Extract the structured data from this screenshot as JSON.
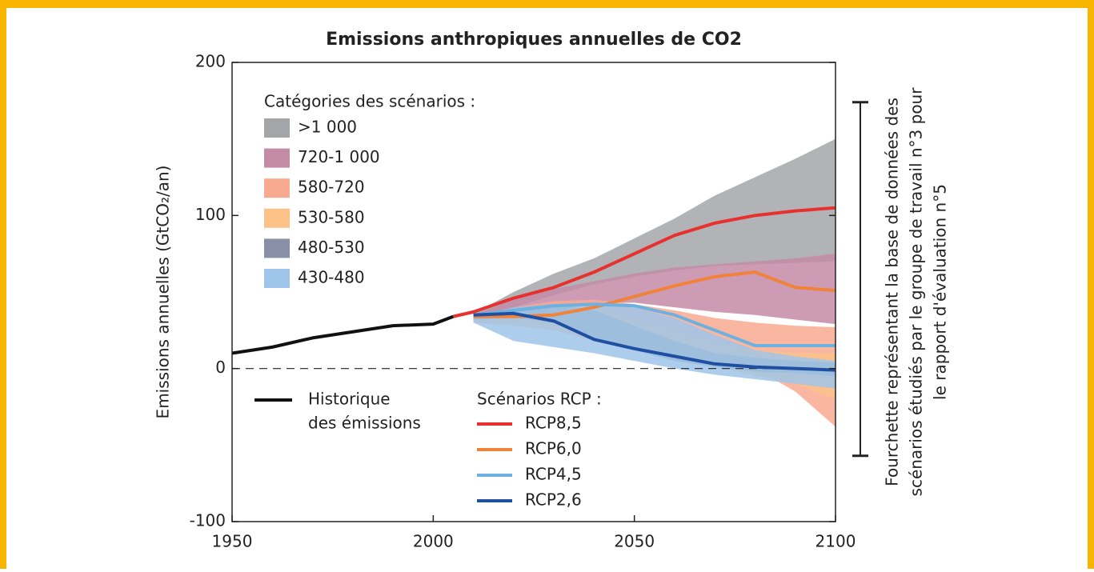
{
  "chart_data": {
    "type": "line",
    "title": "Emissions anthropiques annuelles de CO2",
    "y_label": "Emissions annuelles (GtCO₂/an)",
    "xlim": [
      1950,
      2100
    ],
    "xticks": [
      1950,
      2000,
      2050,
      2100
    ],
    "ylim": [
      -100,
      200
    ],
    "yticks": [
      -100,
      0,
      100,
      200
    ],
    "zero_line": 0,
    "categories_title": "Catégories des scénarios :",
    "bands": [
      {
        "name": ">1 000",
        "color": "#a3a6a9",
        "x": [
          2010,
          2020,
          2030,
          2040,
          2050,
          2060,
          2070,
          2080,
          2090,
          2100
        ],
        "upper": [
          36,
          50,
          62,
          72,
          85,
          98,
          113,
          125,
          137,
          150
        ],
        "lower": [
          33,
          40,
          48,
          55,
          60,
          64,
          67,
          68,
          69,
          70
        ]
      },
      {
        "name": "720-1 000",
        "color": "#c48ba7",
        "x": [
          2010,
          2020,
          2030,
          2040,
          2050,
          2060,
          2070,
          2080,
          2090,
          2100
        ],
        "upper": [
          35,
          45,
          52,
          57,
          62,
          66,
          68,
          70,
          72,
          75
        ],
        "lower": [
          33,
          38,
          42,
          43,
          43,
          40,
          37,
          35,
          32,
          29
        ]
      },
      {
        "name": "580-720",
        "color": "#f8aa90",
        "x": [
          2010,
          2020,
          2030,
          2040,
          2050,
          2060,
          2070,
          2080,
          2090,
          2100
        ],
        "upper": [
          34,
          40,
          44,
          45,
          42,
          38,
          33,
          30,
          28,
          27
        ],
        "lower": [
          30,
          30,
          28,
          22,
          15,
          10,
          5,
          0,
          -15,
          -38
        ]
      },
      {
        "name": "530-580",
        "color": "#fcc287",
        "x": [
          2010,
          2020,
          2030,
          2040,
          2050,
          2060,
          2070,
          2080,
          2090,
          2100
        ],
        "upper": [
          33,
          38,
          42,
          40,
          32,
          25,
          17,
          12,
          10,
          10
        ],
        "lower": [
          30,
          28,
          25,
          18,
          12,
          6,
          2,
          -5,
          -10,
          -20
        ]
      },
      {
        "name": "480-530",
        "color": "#8a8fa8",
        "x": [
          2010,
          2020,
          2030,
          2040,
          2050,
          2060,
          2070,
          2080,
          2090,
          2100
        ],
        "upper": [
          33,
          40,
          42,
          38,
          28,
          18,
          10,
          7,
          5,
          4
        ],
        "lower": [
          32,
          33,
          30,
          20,
          12,
          5,
          1,
          -2,
          -3,
          -5
        ]
      },
      {
        "name": "430-480",
        "color": "#9fc4e9",
        "x": [
          2010,
          2020,
          2030,
          2040,
          2050,
          2060,
          2070,
          2080,
          2090,
          2100
        ],
        "upper": [
          33,
          40,
          42,
          42,
          40,
          33,
          22,
          12,
          8,
          5
        ],
        "lower": [
          30,
          18,
          14,
          10,
          5,
          0,
          -4,
          -7,
          -10,
          -13
        ]
      }
    ],
    "history": {
      "name": [
        "Historique",
        "des émissions"
      ],
      "color": "#111111",
      "x": [
        1950,
        1960,
        1970,
        1980,
        1990,
        2000,
        2005
      ],
      "values": [
        10,
        14,
        20,
        24,
        28,
        29,
        34
      ]
    },
    "rcp_title": "Scénarios RCP :",
    "series": [
      {
        "name": "RCP8,5",
        "color": "#e8312e",
        "x": [
          2005,
          2010,
          2020,
          2030,
          2040,
          2050,
          2060,
          2070,
          2080,
          2090,
          2100
        ],
        "values": [
          34,
          37,
          46,
          53,
          63,
          75,
          87,
          95,
          100,
          103,
          105
        ]
      },
      {
        "name": "RCP6,0",
        "color": "#f0823a",
        "x": [
          2010,
          2020,
          2030,
          2040,
          2050,
          2060,
          2070,
          2080,
          2090,
          2100
        ],
        "values": [
          34,
          34,
          35,
          40,
          47,
          54,
          60,
          63,
          53,
          51
        ]
      },
      {
        "name": "RCP4,5",
        "color": "#6cb1e0",
        "x": [
          2010,
          2020,
          2030,
          2040,
          2050,
          2060,
          2070,
          2080,
          2090,
          2100
        ],
        "values": [
          35,
          38,
          41,
          42,
          41,
          35,
          25,
          15,
          15,
          15
        ]
      },
      {
        "name": "RCP2,6",
        "color": "#1f4fa0",
        "x": [
          2010,
          2020,
          2030,
          2040,
          2050,
          2060,
          2070,
          2080,
          2090,
          2100
        ],
        "values": [
          35,
          36,
          31,
          19,
          13,
          8,
          3,
          1,
          0,
          -1
        ]
      }
    ],
    "bracket": {
      "text": [
        "Fourchette représentant la base de données des",
        "scénarios étudiés par le groupe de travail n°3 pour",
        "le rapport d'évaluation n°5"
      ],
      "range": [
        -57,
        174
      ]
    }
  }
}
